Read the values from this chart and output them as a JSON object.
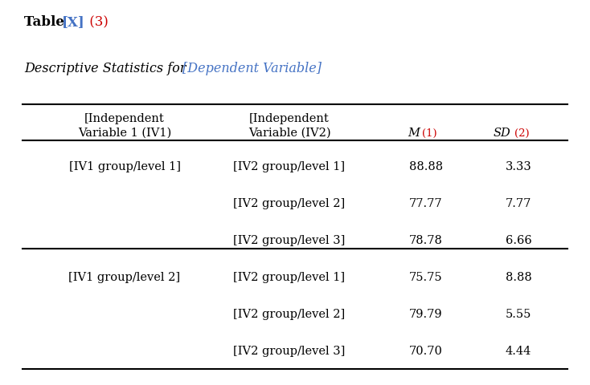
{
  "bg_color": "#FFFFFF",
  "text_color": "#000000",
  "blue_color": "#4472C4",
  "red_color": "#CC0000",
  "title_text": "Table ",
  "title_x_color": "#4472C4",
  "title_x_text": "[X]",
  "title_num_text": " (3)",
  "title_num_color": "#CC0000",
  "subtitle_black": "Descriptive Statistics for ",
  "subtitle_blue": "[Dependent Variable]",
  "col1_header1": "[Independent",
  "col1_header2": "Variable 1 (IV1)",
  "col2_header1": "[Independent",
  "col2_header2": "Variable (IV2)",
  "col3_header2": "M",
  "col3_suffix": "(1)",
  "col4_header2": "SD",
  "col4_suffix": "(2)",
  "rows": [
    {
      "iv1": "[IV1 group/level 1]",
      "iv2": "[IV2 group/level 1]",
      "M": "88.88",
      "SD": "3.33",
      "show_iv1": true,
      "section_start": true
    },
    {
      "iv1": "",
      "iv2": "[IV2 group/level 2]",
      "M": "77.77",
      "SD": "7.77",
      "show_iv1": false,
      "section_start": false
    },
    {
      "iv1": "",
      "iv2": "[IV2 group/level 3]",
      "M": "78.78",
      "SD": "6.66",
      "show_iv1": false,
      "section_start": false
    },
    {
      "iv1": "[IV1 group/level 2]",
      "iv2": "[IV2 group/level 1]",
      "M": "75.75",
      "SD": "8.88",
      "show_iv1": true,
      "section_start": true
    },
    {
      "iv1": "",
      "iv2": "[IV2 group/level 2]",
      "M": "79.79",
      "SD": "5.55",
      "show_iv1": false,
      "section_start": false
    },
    {
      "iv1": "",
      "iv2": "[IV2 group/level 3]",
      "M": "70.70",
      "SD": "4.44",
      "show_iv1": false,
      "section_start": false
    }
  ],
  "font_size": 10.5,
  "title_font_size": 12,
  "subtitle_font_size": 11.5
}
